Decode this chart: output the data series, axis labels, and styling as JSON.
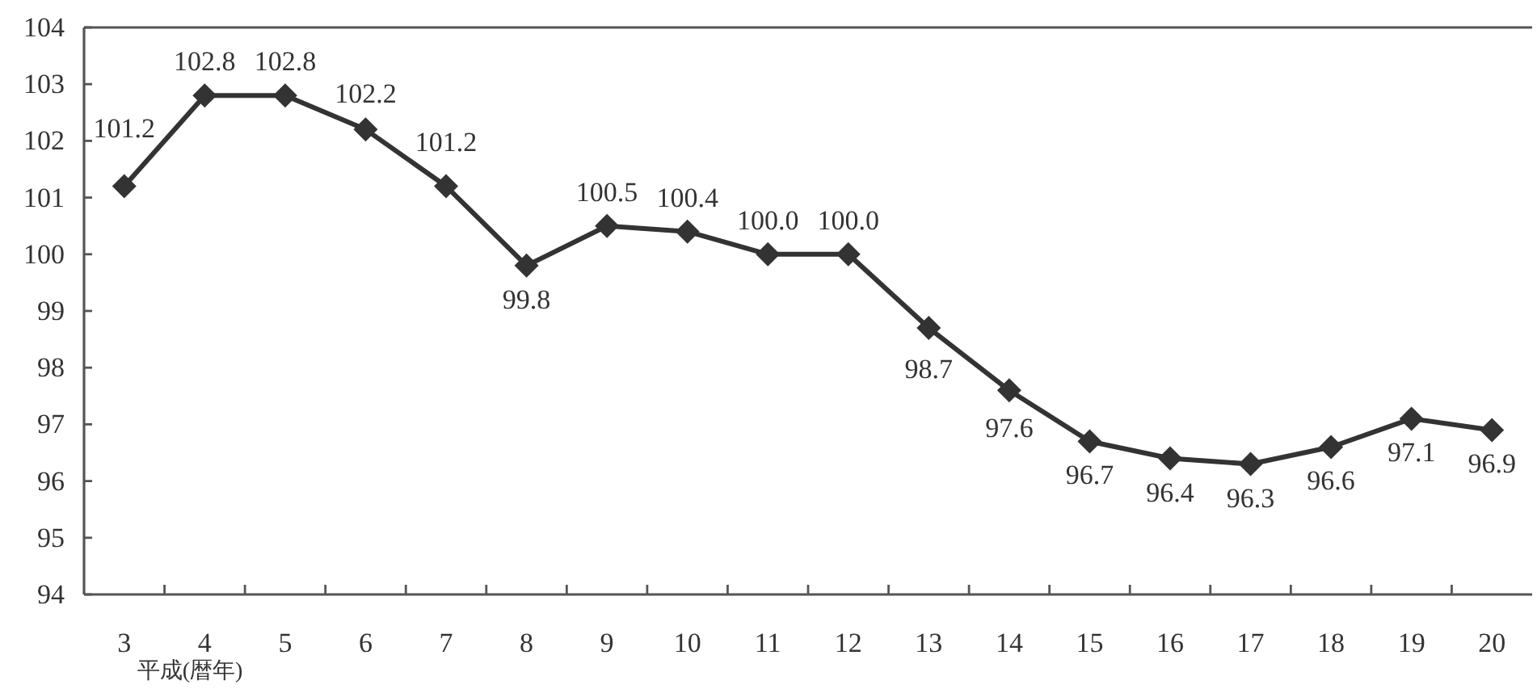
{
  "chart_data": {
    "type": "line",
    "xlabel": "平成(暦年)",
    "categories": [
      "3",
      "4",
      "5",
      "6",
      "7",
      "8",
      "9",
      "10",
      "11",
      "12",
      "13",
      "14",
      "15",
      "16",
      "17",
      "18",
      "19",
      "20"
    ],
    "values": [
      101.2,
      102.8,
      102.8,
      102.2,
      101.2,
      99.8,
      100.5,
      100.4,
      100.0,
      100.0,
      98.7,
      97.6,
      96.7,
      96.4,
      96.3,
      96.6,
      97.1,
      96.9
    ],
    "value_labels": [
      "101.2",
      "102.8",
      "102.8",
      "102.2",
      "101.2",
      "99.8",
      "100.5",
      "100.4",
      "100.0",
      "100.0",
      "98.7",
      "97.6",
      "96.7",
      "96.4",
      "96.3",
      "96.6",
      "97.1",
      "96.9"
    ],
    "color": "#333333",
    "marker": "diamond",
    "line_style": "solid",
    "ylim": [
      94,
      104
    ],
    "yticks": [
      94,
      95,
      96,
      97,
      98,
      99,
      100,
      101,
      102,
      103,
      104
    ]
  }
}
